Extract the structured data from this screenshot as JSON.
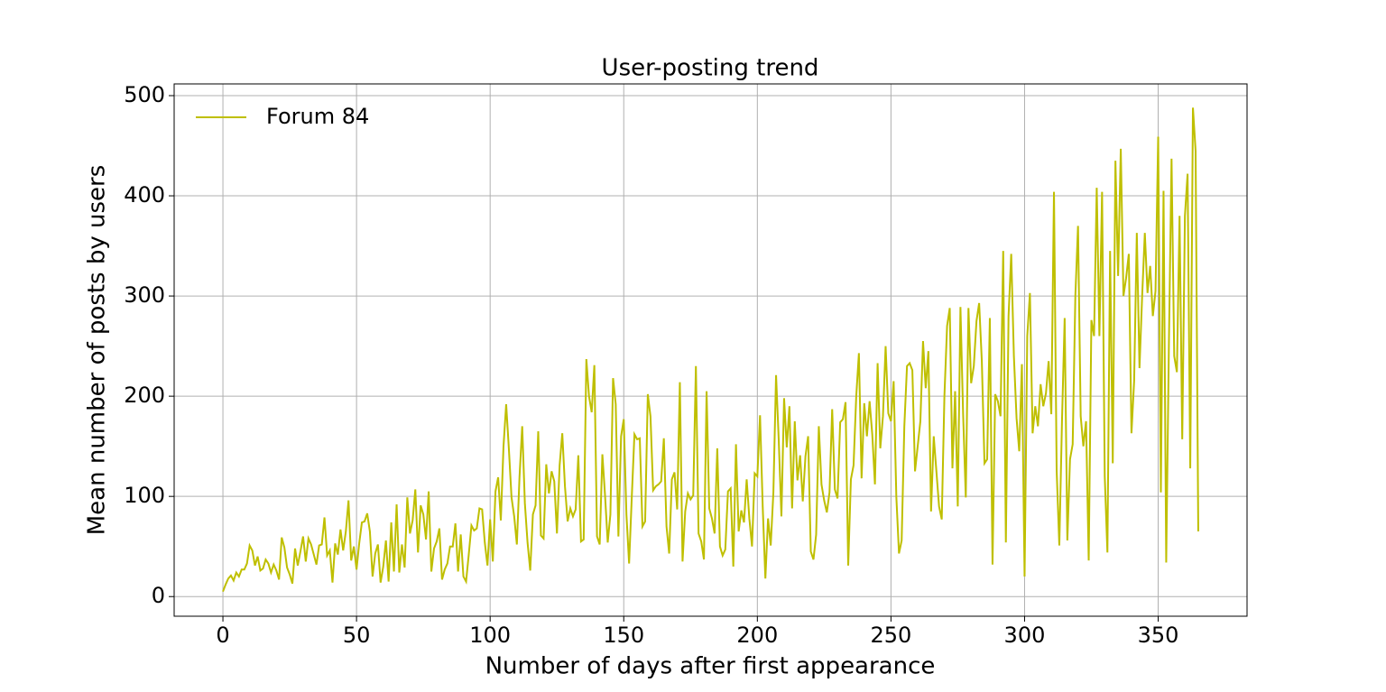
{
  "chart_data": {
    "type": "line",
    "title": "User-posting trend",
    "x_label": "Number of days after first appearance",
    "y_label": "Mean number of posts by users",
    "xlim": [
      -18.25,
      383.25
    ],
    "ylim": [
      -19.6,
      511.7
    ],
    "xticks": [
      0,
      50,
      100,
      150,
      200,
      250,
      300,
      350
    ],
    "yticks": [
      0,
      100,
      200,
      300,
      400,
      500
    ],
    "grid": true,
    "legend": "upper left",
    "x": [
      0,
      1,
      2,
      3,
      4,
      5,
      6,
      7,
      8,
      9,
      10,
      11,
      12,
      13,
      14,
      15,
      16,
      17,
      18,
      19,
      20,
      21,
      22,
      23,
      24,
      25,
      26,
      27,
      28,
      29,
      30,
      31,
      32,
      33,
      34,
      35,
      36,
      37,
      38,
      39,
      40,
      41,
      42,
      43,
      44,
      45,
      46,
      47,
      48,
      49,
      50,
      51,
      52,
      53,
      54,
      55,
      56,
      57,
      58,
      59,
      60,
      61,
      62,
      63,
      64,
      65,
      66,
      67,
      68,
      69,
      70,
      71,
      72,
      73,
      74,
      75,
      76,
      77,
      78,
      79,
      80,
      81,
      82,
      83,
      84,
      85,
      86,
      87,
      88,
      89,
      90,
      91,
      92,
      93,
      94,
      95,
      96,
      97,
      98,
      99,
      100,
      101,
      102,
      103,
      104,
      105,
      106,
      107,
      108,
      109,
      110,
      111,
      112,
      113,
      114,
      115,
      116,
      117,
      118,
      119,
      120,
      121,
      122,
      123,
      124,
      125,
      126,
      127,
      128,
      129,
      130,
      131,
      132,
      133,
      134,
      135,
      136,
      137,
      138,
      139,
      140,
      141,
      142,
      143,
      144,
      145,
      146,
      147,
      148,
      149,
      150,
      151,
      152,
      153,
      154,
      155,
      156,
      157,
      158,
      159,
      160,
      161,
      162,
      163,
      164,
      165,
      166,
      167,
      168,
      169,
      170,
      171,
      172,
      173,
      174,
      175,
      176,
      177,
      178,
      179,
      180,
      181,
      182,
      183,
      184,
      185,
      186,
      187,
      188,
      189,
      190,
      191,
      192,
      193,
      194,
      195,
      196,
      197,
      198,
      199,
      200,
      201,
      202,
      203,
      204,
      205,
      206,
      207,
      208,
      209,
      210,
      211,
      212,
      213,
      214,
      215,
      216,
      217,
      218,
      219,
      220,
      221,
      222,
      223,
      224,
      225,
      226,
      227,
      228,
      229,
      230,
      231,
      232,
      233,
      234,
      235,
      236,
      237,
      238,
      239,
      240,
      241,
      242,
      243,
      244,
      245,
      246,
      247,
      248,
      249,
      250,
      251,
      252,
      253,
      254,
      255,
      256,
      257,
      258,
      259,
      260,
      261,
      262,
      263,
      264,
      265,
      266,
      267,
      268,
      269,
      270,
      271,
      272,
      273,
      274,
      275,
      276,
      277,
      278,
      279,
      280,
      281,
      282,
      283,
      284,
      285,
      286,
      287,
      288,
      289,
      290,
      291,
      292,
      293,
      294,
      295,
      296,
      297,
      298,
      299,
      300,
      301,
      302,
      303,
      304,
      305,
      306,
      307,
      308,
      309,
      310,
      311,
      312,
      313,
      314,
      315,
      316,
      317,
      318,
      319,
      320,
      321,
      322,
      323,
      324,
      325,
      326,
      327,
      328,
      329,
      330,
      331,
      332,
      333,
      334,
      335,
      336,
      337,
      338,
      339,
      340,
      341,
      342,
      343,
      344,
      345,
      346,
      347,
      348,
      349,
      350,
      351,
      352,
      353,
      354,
      355,
      356,
      357,
      358,
      359,
      360,
      361,
      362,
      363,
      364,
      365
    ],
    "series": [
      {
        "name": "Forum 84",
        "color": "#bfbf00",
        "values": [
          5,
          12,
          18,
          21,
          16,
          24,
          20,
          27,
          27,
          33,
          51,
          46,
          31,
          40,
          26,
          28,
          37,
          33,
          24,
          32,
          26,
          17,
          59,
          49,
          29,
          22,
          13,
          48,
          31,
          45,
          60,
          35,
          58,
          52,
          42,
          32,
          51,
          52,
          79,
          41,
          46,
          14,
          53,
          42,
          67,
          46,
          65,
          96,
          36,
          50,
          27,
          53,
          74,
          75,
          83,
          65,
          20,
          43,
          52,
          14,
          30,
          56,
          15,
          74,
          25,
          92,
          24,
          52,
          29,
          99,
          63,
          76,
          107,
          44,
          91,
          82,
          57,
          105,
          25,
          48,
          55,
          68,
          17,
          27,
          33,
          50,
          50,
          73,
          25,
          62,
          20,
          15,
          42,
          71,
          66,
          68,
          88,
          87,
          54,
          31,
          77,
          35,
          105,
          119,
          76,
          150,
          192,
          148,
          99,
          80,
          52,
          120,
          170,
          93,
          54,
          26,
          82,
          91,
          165,
          61,
          58,
          132,
          103,
          125,
          115,
          63,
          131,
          163,
          110,
          75,
          88,
          80,
          87,
          141,
          55,
          57,
          237,
          200,
          184,
          231,
          60,
          52,
          142,
          101,
          54,
          82,
          218,
          192,
          60,
          160,
          177,
          82,
          33,
          99,
          162,
          157,
          158,
          70,
          75,
          202,
          180,
          106,
          110,
          112,
          115,
          158,
          70,
          43,
          117,
          124,
          87,
          214,
          35,
          85,
          103,
          97,
          101,
          230,
          63,
          55,
          37,
          205,
          88,
          78,
          63,
          148,
          50,
          41,
          47,
          105,
          108,
          30,
          152,
          65,
          86,
          74,
          117,
          78,
          50,
          123,
          120,
          181,
          90,
          18,
          78,
          51,
          104,
          221,
          156,
          80,
          198,
          149,
          190,
          88,
          175,
          116,
          141,
          95,
          140,
          160,
          45,
          37,
          62,
          170,
          112,
          96,
          84,
          104,
          187,
          107,
          98,
          174,
          177,
          194,
          31,
          117,
          131,
          200,
          243,
          118,
          193,
          160,
          195,
          162,
          112,
          233,
          148,
          180,
          250,
          183,
          175,
          215,
          100,
          43,
          56,
          170,
          230,
          233,
          226,
          125,
          150,
          175,
          255,
          208,
          245,
          85,
          160,
          125,
          90,
          77,
          200,
          270,
          288,
          128,
          205,
          90,
          289,
          182,
          99,
          288,
          213,
          230,
          275,
          293,
          235,
          133,
          137,
          278,
          32,
          202,
          195,
          180,
          345,
          54,
          280,
          342,
          240,
          178,
          145,
          232,
          20,
          260,
          303,
          163,
          190,
          170,
          212,
          190,
          203,
          235,
          182,
          404,
          126,
          51,
          175,
          278,
          56,
          137,
          152,
          300,
          370,
          180,
          150,
          175,
          36,
          276,
          260,
          408,
          260,
          404,
          120,
          44,
          345,
          133,
          435,
          320,
          447,
          300,
          318,
          342,
          163,
          215,
          363,
          228,
          300,
          363,
          303,
          330,
          280,
          305,
          459,
          104,
          405,
          34,
          250,
          437,
          240,
          224,
          380,
          157,
          380,
          422,
          128,
          488,
          445,
          65
        ]
      }
    ]
  }
}
